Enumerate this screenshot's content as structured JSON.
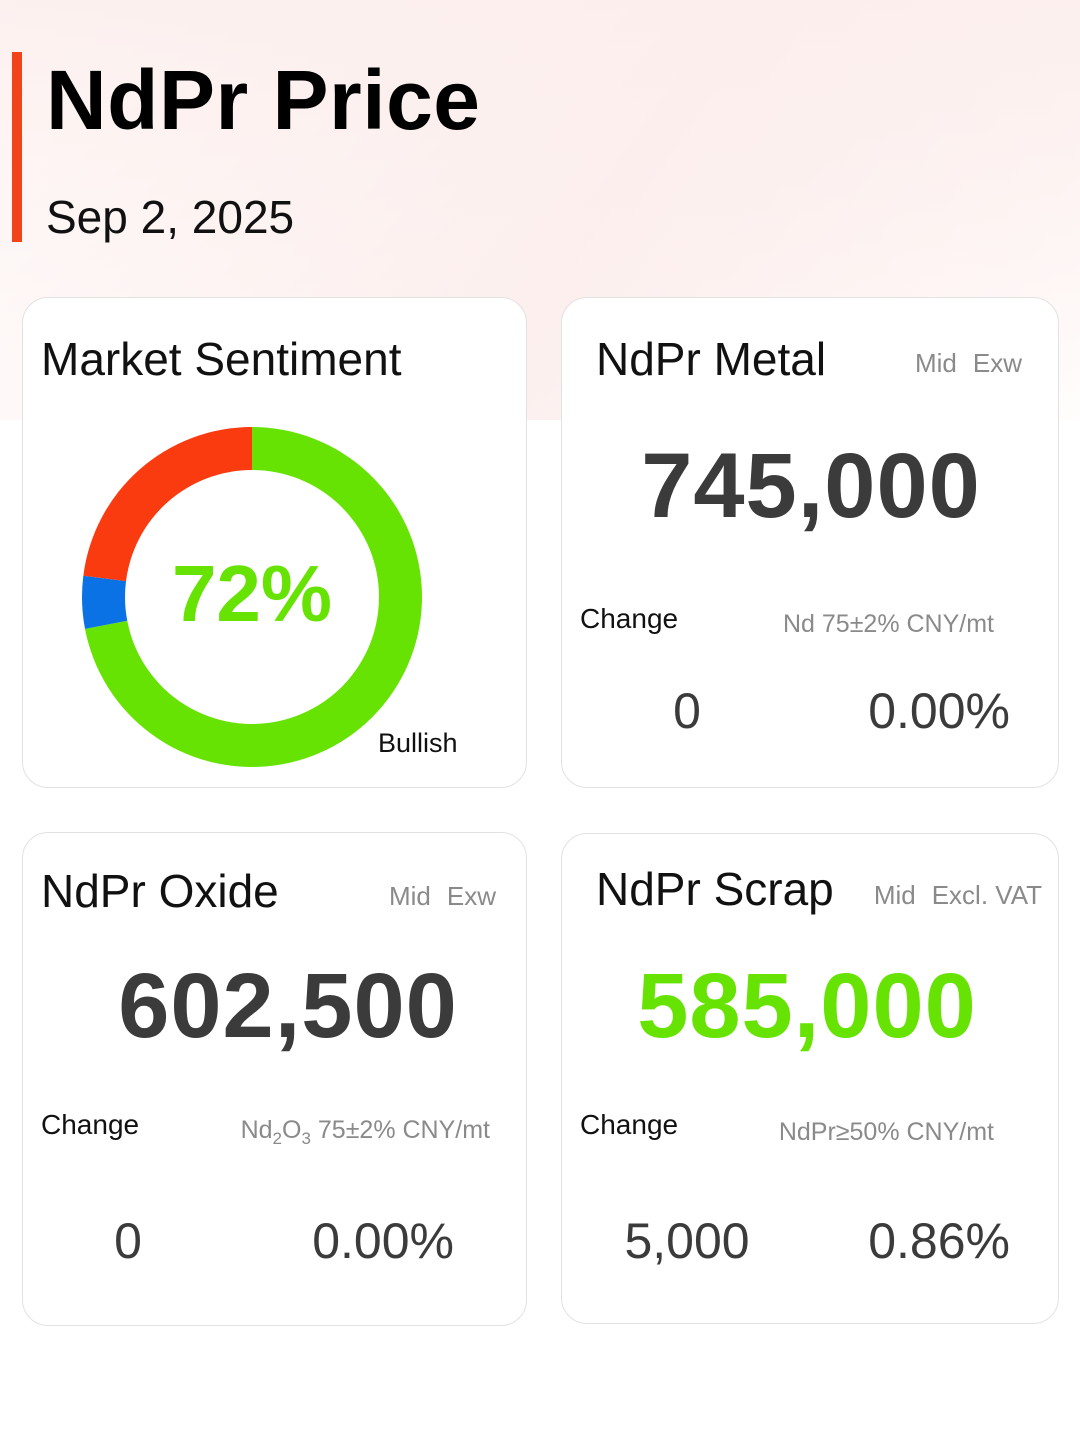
{
  "header": {
    "title": "NdPr Price",
    "date": "Sep 2, 2025"
  },
  "colors": {
    "accent": "#f2441a",
    "bullish_green": "#66e302",
    "bearish_red": "#fa3a0f",
    "neutral_blue": "#0b72e6",
    "price_dark": "#3b3b3b"
  },
  "sentiment": {
    "title": "Market Sentiment",
    "percent_label": "72%",
    "label": "Bullish",
    "segments": [
      {
        "key": "bullish",
        "value": 0.72,
        "color": "#66e302"
      },
      {
        "key": "neutral",
        "value": 0.05,
        "color": "#0b72e6"
      },
      {
        "key": "bearish",
        "value": 0.23,
        "color": "#fa3a0f"
      }
    ]
  },
  "metal": {
    "title": "NdPr Metal",
    "tag1": "Mid",
    "tag2": "Exw",
    "price": "745,000",
    "change_label": "Change",
    "spec": "Nd 75±2% CNY/mt",
    "change_abs": "0",
    "change_pct": "0.00%"
  },
  "oxide": {
    "title": "NdPr Oxide",
    "tag1": "Mid",
    "tag2": "Exw",
    "price": "602,500",
    "change_label": "Change",
    "spec_formula": {
      "el1": "Nd",
      "sub1": "2",
      "el2": "O",
      "sub2": "3"
    },
    "spec_rest": "75±2% CNY/mt",
    "change_abs": "0",
    "change_pct": "0.00%"
  },
  "scrap": {
    "title": "NdPr Scrap",
    "tag1": "Mid",
    "tag2": "Excl. VAT",
    "price": "585,000",
    "change_label": "Change",
    "spec": "NdPr≥50% CNY/mt",
    "change_abs": "5,000",
    "change_pct": "0.86%"
  }
}
